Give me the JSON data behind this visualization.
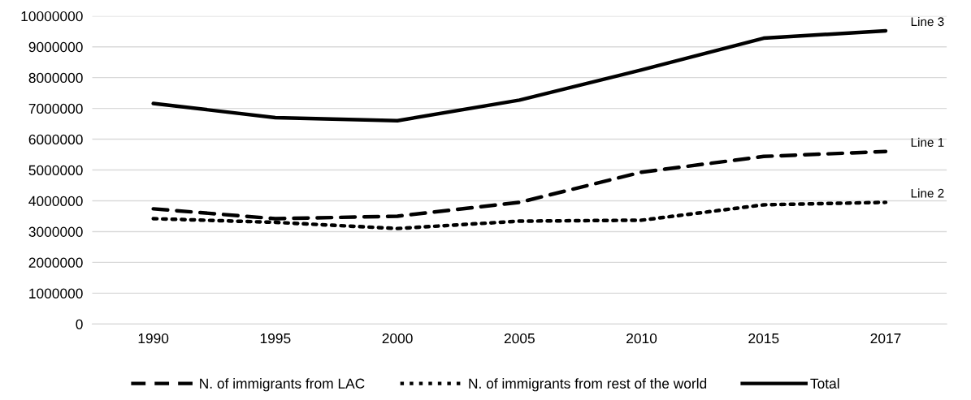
{
  "chart_data": {
    "type": "line",
    "categories": [
      "1990",
      "1995",
      "2000",
      "2005",
      "2010",
      "2015",
      "2017"
    ],
    "series": [
      {
        "name": "N. of immigrants from LAC",
        "color": "#000000",
        "line_style": "dashed",
        "values": [
          3740000,
          3420000,
          3500000,
          3950000,
          4930000,
          5440000,
          5600000
        ]
      },
      {
        "name": "N. of immigrants from rest of the world",
        "color": "#000000",
        "line_style": "dotted",
        "values": [
          3420000,
          3300000,
          3100000,
          3340000,
          3370000,
          3870000,
          3950000
        ]
      },
      {
        "name": "Total",
        "color": "#000000",
        "line_style": "solid",
        "values": [
          7160000,
          6700000,
          6600000,
          7270000,
          8250000,
          9280000,
          9520000
        ]
      }
    ],
    "ylim": [
      0,
      10000000
    ],
    "yticks": [
      0,
      1000000,
      2000000,
      3000000,
      4000000,
      5000000,
      6000000,
      7000000,
      8000000,
      9000000,
      10000000
    ],
    "grid": "y",
    "legend": "bottom",
    "marker": "none",
    "annotations": [
      {
        "text": "Line 1",
        "x": "2017",
        "y": 5600000
      },
      {
        "text": "Line 2",
        "x": "2017",
        "y": 3950000
      },
      {
        "text": "Line 3",
        "x": "2017",
        "y": 9520000
      }
    ]
  }
}
